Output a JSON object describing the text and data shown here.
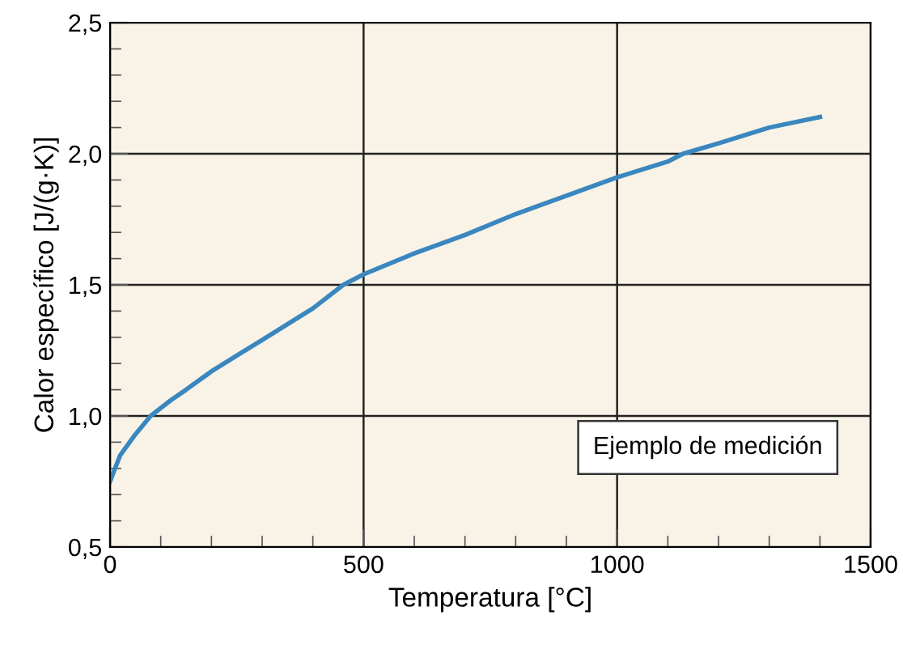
{
  "chart_data": {
    "type": "line",
    "xlabel": "Temperatura [°C]",
    "ylabel": "Calor específico [J/(g·K)]",
    "x": [
      0,
      10,
      20,
      35,
      50,
      80,
      120,
      150,
      200,
      250,
      300,
      350,
      400,
      460,
      500,
      600,
      700,
      800,
      900,
      1000,
      1100,
      1130,
      1200,
      1250,
      1300,
      1400
    ],
    "series": [
      {
        "color": "#3a87c0",
        "values": [
          0.75,
          0.8,
          0.85,
          0.89,
          0.93,
          1.0,
          1.06,
          1.1,
          1.17,
          1.23,
          1.29,
          1.35,
          1.41,
          1.5,
          1.54,
          1.62,
          1.69,
          1.77,
          1.84,
          1.91,
          1.97,
          2.0,
          2.04,
          2.07,
          2.1,
          2.14
        ]
      }
    ],
    "xlim": [
      0,
      1500
    ],
    "xticks": [
      0,
      500,
      1000,
      1500
    ],
    "ylim": [
      0.5,
      2.5
    ],
    "yticks": [
      {
        "value": 0.5,
        "label": "0,5"
      },
      {
        "value": 1.0,
        "label": "1,0"
      },
      {
        "value": 1.5,
        "label": "1,5"
      },
      {
        "value": 2.0,
        "label": "2,0"
      },
      {
        "value": 2.5,
        "label": "2,5"
      }
    ],
    "grid": true,
    "marker": "none",
    "line_style": "solid",
    "annotations": [
      "Ejemplo de medición"
    ]
  }
}
